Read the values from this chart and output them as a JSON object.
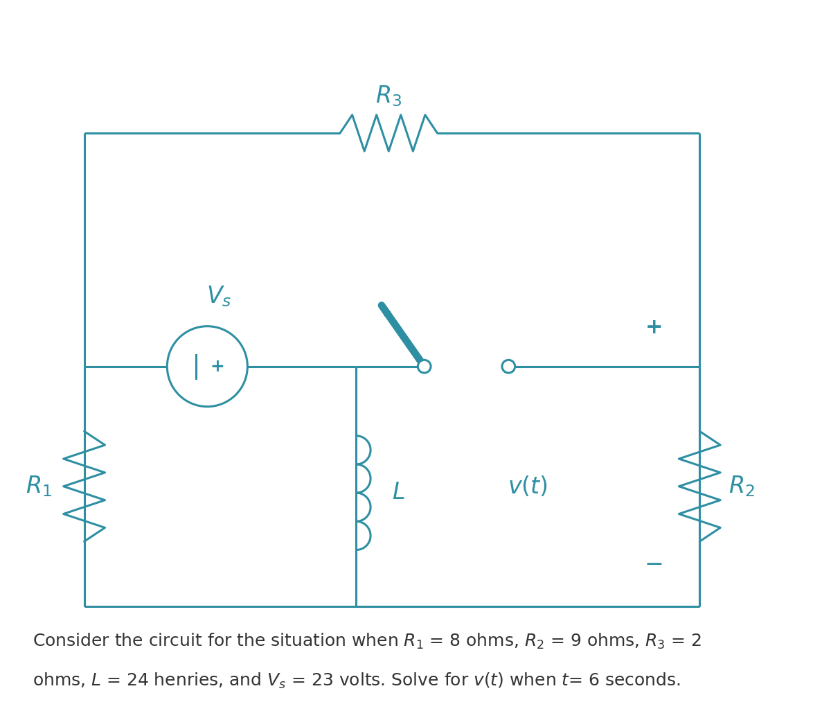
{
  "bg_color": "#ffffff",
  "circuit_color": "#2e8fa3",
  "text_color": "#2e8fa3",
  "caption_color": "#333333",
  "caption_line1": "Consider the circuit for the situation when $R_1$ = 8 ohms, $R_2$ = 9 ohms, $R_3$ = 2",
  "caption_line2": "ohms, $L$ = 24 henries, and $V_s$ = 23 volts. Solve for $v(t)$ when $t$= 6 seconds.",
  "label_R3": "$R_3$",
  "label_R1": "$R_1$",
  "label_R2": "$R_2$",
  "label_L": "$L$",
  "label_Vs": "$V_s$",
  "label_vt": "$v(t)$",
  "lw": 2.2,
  "font_size_labels": 24,
  "font_size_caption": 18,
  "figsize": [
    12.0,
    10.49
  ],
  "xlim": [
    0,
    12
  ],
  "ylim": [
    0,
    10.49
  ]
}
